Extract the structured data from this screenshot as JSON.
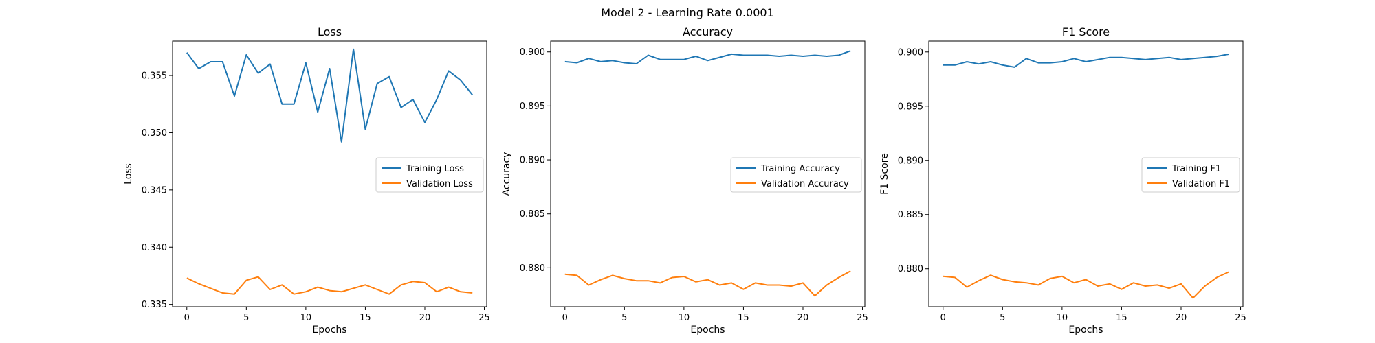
{
  "figure": {
    "suptitle": "Model 2 - Learning Rate 0.0001"
  },
  "colors": {
    "train": "#1f77b4",
    "val": "#ff7f0e"
  },
  "chart_data": [
    {
      "type": "line",
      "title": "Loss",
      "xlabel": "Epochs",
      "ylabel": "Loss",
      "xlim": [
        -1.2,
        25.2
      ],
      "ylim": [
        0.3348,
        0.358
      ],
      "xticks": [
        0,
        5,
        10,
        15,
        20,
        25
      ],
      "xtick_labels": [
        "0",
        "5",
        "10",
        "15",
        "20",
        "25"
      ],
      "yticks": [
        0.335,
        0.34,
        0.345,
        0.35,
        0.355
      ],
      "ytick_labels": [
        "0.335",
        "0.340",
        "0.345",
        "0.350",
        "0.355"
      ],
      "legend_loc": "center-right",
      "x": [
        0,
        1,
        2,
        3,
        4,
        5,
        6,
        7,
        8,
        9,
        10,
        11,
        12,
        13,
        14,
        15,
        16,
        17,
        18,
        19,
        20,
        21,
        22,
        23,
        24
      ],
      "series": [
        {
          "name": "Training Loss",
          "values": [
            0.357,
            0.3556,
            0.3562,
            0.3562,
            0.3532,
            0.3568,
            0.3552,
            0.356,
            0.3525,
            0.3525,
            0.3561,
            0.3518,
            0.3556,
            0.3492,
            0.3573,
            0.3503,
            0.3543,
            0.3549,
            0.3522,
            0.3529,
            0.3509,
            0.3529,
            0.3554,
            0.3546,
            0.3533
          ]
        },
        {
          "name": "Validation Loss",
          "values": [
            0.3373,
            0.3368,
            0.3364,
            0.336,
            0.3359,
            0.3371,
            0.3374,
            0.3363,
            0.3367,
            0.3359,
            0.3361,
            0.3365,
            0.3362,
            0.3361,
            0.3364,
            0.3367,
            0.3363,
            0.3359,
            0.3367,
            0.337,
            0.3369,
            0.3361,
            0.3365,
            0.3361,
            0.336
          ]
        }
      ]
    },
    {
      "type": "line",
      "title": "Accuracy",
      "xlabel": "Epochs",
      "ylabel": "Accuracy",
      "xlim": [
        -1.2,
        25.2
      ],
      "ylim": [
        0.8764,
        0.901
      ],
      "xticks": [
        0,
        5,
        10,
        15,
        20,
        25
      ],
      "xtick_labels": [
        "0",
        "5",
        "10",
        "15",
        "20",
        "25"
      ],
      "yticks": [
        0.88,
        0.885,
        0.89,
        0.895,
        0.9
      ],
      "ytick_labels": [
        "0.880",
        "0.885",
        "0.890",
        "0.895",
        "0.900"
      ],
      "legend_loc": "center-right",
      "x": [
        0,
        1,
        2,
        3,
        4,
        5,
        6,
        7,
        8,
        9,
        10,
        11,
        12,
        13,
        14,
        15,
        16,
        17,
        18,
        19,
        20,
        21,
        22,
        23,
        24
      ],
      "series": [
        {
          "name": "Training Accuracy",
          "values": [
            0.8991,
            0.899,
            0.8994,
            0.8991,
            0.8992,
            0.899,
            0.8989,
            0.8997,
            0.8993,
            0.8993,
            0.8993,
            0.8996,
            0.8992,
            0.8995,
            0.8998,
            0.8997,
            0.8997,
            0.8997,
            0.8996,
            0.8997,
            0.8996,
            0.8997,
            0.8996,
            0.8997,
            0.9001
          ]
        },
        {
          "name": "Validation Accuracy",
          "values": [
            0.8794,
            0.8793,
            0.8784,
            0.8789,
            0.8793,
            0.879,
            0.8788,
            0.8788,
            0.8786,
            0.8791,
            0.8792,
            0.8787,
            0.8789,
            0.8784,
            0.8786,
            0.878,
            0.8786,
            0.8784,
            0.8784,
            0.8783,
            0.8786,
            0.8774,
            0.8784,
            0.8791,
            0.8797
          ]
        }
      ]
    },
    {
      "type": "line",
      "title": "F1 Score",
      "xlabel": "Epochs",
      "ylabel": "F1 Score",
      "xlim": [
        -1.2,
        25.2
      ],
      "ylim": [
        0.8765,
        0.901
      ],
      "xticks": [
        0,
        5,
        10,
        15,
        20,
        25
      ],
      "xtick_labels": [
        "0",
        "5",
        "10",
        "15",
        "20",
        "25"
      ],
      "yticks": [
        0.88,
        0.885,
        0.89,
        0.895,
        0.9
      ],
      "ytick_labels": [
        "0.880",
        "0.885",
        "0.890",
        "0.895",
        "0.900"
      ],
      "legend_loc": "center-right",
      "x": [
        0,
        1,
        2,
        3,
        4,
        5,
        6,
        7,
        8,
        9,
        10,
        11,
        12,
        13,
        14,
        15,
        16,
        17,
        18,
        19,
        20,
        21,
        22,
        23,
        24
      ],
      "series": [
        {
          "name": "Training F1",
          "values": [
            0.8988,
            0.8988,
            0.8991,
            0.8989,
            0.8991,
            0.8988,
            0.8986,
            0.8994,
            0.899,
            0.899,
            0.8991,
            0.8994,
            0.8991,
            0.8993,
            0.8995,
            0.8995,
            0.8994,
            0.8993,
            0.8994,
            0.8995,
            0.8993,
            0.8994,
            0.8995,
            0.8996,
            0.8998
          ]
        },
        {
          "name": "Validation F1",
          "values": [
            0.8793,
            0.8792,
            0.8783,
            0.8789,
            0.8794,
            0.879,
            0.8788,
            0.8787,
            0.8785,
            0.8791,
            0.8793,
            0.8787,
            0.879,
            0.8784,
            0.8786,
            0.8781,
            0.8787,
            0.8784,
            0.8785,
            0.8782,
            0.8786,
            0.8773,
            0.8784,
            0.8792,
            0.8797
          ]
        }
      ]
    }
  ]
}
